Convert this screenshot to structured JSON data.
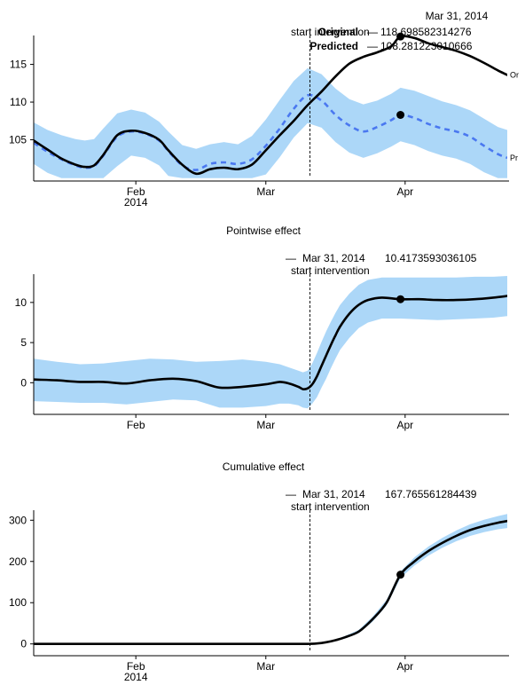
{
  "chart_data": [
    {
      "type": "line",
      "title": "",
      "xlabel": "",
      "ylabel": "",
      "ylim": [
        100,
        118.6
      ],
      "yticks": [
        105,
        110,
        115
      ],
      "xticks": [
        {
          "day": 22,
          "label": "Feb",
          "sublabel": "2014"
        },
        {
          "day": 50,
          "label": "Mar",
          "sublabel": ""
        },
        {
          "day": 80,
          "label": "Apr",
          "sublabel": ""
        }
      ],
      "xlim": [
        0,
        102
      ],
      "intervention_day": 59.5,
      "intervention_label": "start intervention",
      "hover": {
        "date": "Mar 31, 2014",
        "day": 79,
        "rows": [
          {
            "name": "Original",
            "value": "118.698582314276"
          },
          {
            "name": "Predicted",
            "value": "108.281223010666"
          }
        ]
      },
      "series": [
        {
          "name": "Original",
          "end_label": "Or",
          "style": "solid",
          "color": "#000000",
          "x": [
            0,
            3,
            6,
            9,
            11,
            13,
            15,
            18,
            21,
            24,
            27,
            29,
            32,
            35,
            38,
            41,
            44,
            47,
            50,
            53,
            56,
            59,
            62,
            65,
            68,
            71,
            74,
            77,
            79,
            82,
            85,
            88,
            91,
            94,
            97,
            100,
            102
          ],
          "y": [
            104.9,
            103.7,
            102.5,
            101.7,
            101.4,
            101.6,
            103.0,
            105.6,
            106.2,
            105.9,
            105.0,
            103.6,
            101.7,
            100.5,
            101.1,
            101.3,
            101.1,
            101.7,
            103.6,
            105.6,
            107.5,
            109.6,
            111.4,
            113.4,
            115.1,
            116.0,
            116.6,
            117.4,
            118.7,
            118.5,
            117.8,
            117.3,
            116.8,
            116.1,
            115.2,
            114.2,
            113.6
          ]
        },
        {
          "name": "Predicted",
          "end_label": "Pr",
          "style": "dashed",
          "color": "#4a78f0",
          "x": [
            0,
            3,
            6,
            9,
            11,
            13,
            15,
            18,
            21,
            24,
            27,
            29,
            32,
            35,
            38,
            41,
            44,
            47,
            50,
            53,
            56,
            59,
            62,
            65,
            68,
            71,
            74,
            77,
            79,
            82,
            85,
            88,
            91,
            94,
            97,
            100,
            102
          ],
          "y": [
            104.6,
            103.4,
            102.4,
            101.6,
            101.3,
            101.5,
            102.9,
            105.4,
            106.1,
            105.8,
            104.9,
            103.5,
            101.6,
            101.0,
            101.8,
            102.0,
            101.8,
            102.4,
            104.2,
            106.5,
            109.1,
            110.9,
            110.2,
            108.3,
            106.9,
            106.1,
            106.7,
            107.6,
            108.3,
            107.9,
            107.1,
            106.5,
            106.1,
            105.4,
            104.2,
            103.1,
            102.6
          ]
        }
      ],
      "band": {
        "x": [
          0,
          3,
          6,
          9,
          11,
          13,
          15,
          18,
          21,
          24,
          27,
          29,
          32,
          35,
          38,
          41,
          44,
          47,
          50,
          53,
          56,
          59,
          62,
          65,
          68,
          71,
          74,
          77,
          79,
          82,
          85,
          88,
          91,
          94,
          97,
          100,
          102
        ],
        "upper": [
          107.3,
          106.3,
          105.6,
          105.1,
          104.9,
          105.1,
          106.5,
          108.5,
          109.0,
          108.6,
          107.4,
          106.1,
          104.3,
          103.8,
          104.4,
          104.7,
          104.4,
          105.5,
          107.7,
          110.3,
          112.8,
          114.5,
          113.7,
          111.8,
          110.4,
          109.7,
          110.2,
          111.1,
          111.9,
          111.5,
          110.8,
          110.1,
          109.6,
          108.9,
          107.8,
          106.7,
          106.3
        ],
        "lower": [
          101.8,
          100.6,
          99.9,
          99.9,
          99.9,
          99.9,
          99.9,
          101.5,
          102.9,
          102.6,
          101.6,
          100.2,
          99.9,
          99.9,
          99.9,
          99.9,
          99.9,
          99.9,
          100.4,
          102.7,
          105.3,
          107.2,
          106.6,
          104.7,
          103.3,
          102.6,
          103.2,
          104.1,
          104.8,
          104.3,
          103.5,
          102.9,
          102.5,
          101.8,
          100.7,
          99.9,
          99.9
        ]
      }
    },
    {
      "type": "line",
      "title": "Pointwise effect",
      "xlabel": "",
      "ylabel": "",
      "ylim": [
        -3.5,
        13.3
      ],
      "yticks": [
        0,
        5,
        10
      ],
      "xticks": [
        {
          "day": 22,
          "label": "Feb",
          "sublabel": ""
        },
        {
          "day": 50,
          "label": "Mar",
          "sublabel": ""
        },
        {
          "day": 80,
          "label": "Apr",
          "sublabel": ""
        }
      ],
      "xlim": [
        0,
        102
      ],
      "intervention_day": 59.5,
      "intervention_label": "start intervention",
      "hover": {
        "date": "Mar 31, 2014",
        "day": 79,
        "rows": [
          {
            "name": "",
            "value": "10.4173593036105"
          }
        ]
      },
      "series": [
        {
          "name": "",
          "style": "solid",
          "color": "#000000",
          "x": [
            0,
            5,
            10,
            15,
            20,
            25,
            30,
            35,
            40,
            45,
            50,
            53,
            55,
            57,
            58,
            59,
            60,
            61,
            62,
            63,
            64,
            65,
            66,
            68,
            70,
            72,
            75,
            79,
            83,
            87,
            91,
            95,
            99,
            102
          ],
          "y": [
            0.4,
            0.3,
            0.1,
            0.1,
            -0.1,
            0.3,
            0.5,
            0.2,
            -0.6,
            -0.5,
            -0.2,
            0.1,
            -0.1,
            -0.5,
            -0.8,
            -0.7,
            -0.2,
            0.8,
            2.1,
            3.4,
            4.7,
            5.9,
            7.0,
            8.6,
            9.7,
            10.3,
            10.6,
            10.4,
            10.4,
            10.3,
            10.3,
            10.4,
            10.6,
            10.8
          ]
        }
      ],
      "band": {
        "x": [
          0,
          5,
          10,
          15,
          20,
          25,
          30,
          35,
          40,
          45,
          50,
          53,
          55,
          57,
          58,
          59,
          60,
          61,
          62,
          63,
          64,
          65,
          66,
          68,
          70,
          72,
          75,
          79,
          83,
          87,
          91,
          95,
          99,
          102
        ],
        "upper": [
          3.0,
          2.6,
          2.3,
          2.4,
          2.7,
          3.0,
          2.9,
          2.6,
          2.7,
          2.9,
          2.6,
          2.3,
          1.9,
          1.5,
          1.3,
          1.5,
          2.4,
          3.7,
          5.1,
          6.4,
          7.6,
          8.7,
          9.7,
          11.1,
          12.2,
          12.8,
          13.1,
          13.1,
          13.1,
          13.1,
          13.1,
          13.2,
          13.2,
          13.3
        ],
        "lower": [
          -2.3,
          -2.4,
          -2.5,
          -2.5,
          -2.7,
          -2.4,
          -2.1,
          -2.2,
          -3.1,
          -3.1,
          -2.9,
          -2.6,
          -2.6,
          -2.8,
          -3.1,
          -3.2,
          -2.6,
          -1.8,
          -0.6,
          0.5,
          1.8,
          3.0,
          4.1,
          5.6,
          6.8,
          7.5,
          8.0,
          8.0,
          7.9,
          7.8,
          7.9,
          8.0,
          8.1,
          8.3
        ]
      }
    },
    {
      "type": "line",
      "title": "Cumulative effect",
      "xlabel": "",
      "ylabel": "",
      "ylim": [
        -20,
        320
      ],
      "yticks": [
        0,
        100,
        200,
        300
      ],
      "xticks": [
        {
          "day": 22,
          "label": "Feb",
          "sublabel": "2014"
        },
        {
          "day": 50,
          "label": "Mar",
          "sublabel": ""
        },
        {
          "day": 80,
          "label": "Apr",
          "sublabel": ""
        }
      ],
      "xlim": [
        0,
        102
      ],
      "intervention_day": 59.5,
      "intervention_label": "start intervention",
      "hover": {
        "date": "Mar 31, 2014",
        "day": 79,
        "rows": [
          {
            "name": "",
            "value": "167.765561284439"
          }
        ]
      },
      "series": [
        {
          "name": "",
          "style": "solid",
          "color": "#000000",
          "x": [
            0,
            10,
            20,
            30,
            40,
            50,
            55,
            58,
            59.5,
            61,
            63,
            65,
            67,
            70,
            73,
            76,
            79,
            82,
            85,
            88,
            91,
            94,
            97,
            100,
            102
          ],
          "y": [
            0,
            0,
            0,
            0,
            0,
            0,
            0,
            0,
            0.3,
            1,
            4,
            9,
            16,
            30,
            60,
            100,
            168,
            200,
            225,
            245,
            262,
            276,
            286,
            294,
            298
          ]
        }
      ],
      "band": {
        "x": [
          0,
          10,
          20,
          30,
          40,
          50,
          55,
          58,
          59.5,
          61,
          63,
          65,
          67,
          70,
          73,
          76,
          79,
          82,
          85,
          88,
          91,
          94,
          97,
          100,
          102
        ],
        "upper": [
          0,
          0,
          0,
          0,
          0,
          0,
          0,
          0,
          0.5,
          2,
          5,
          11,
          19,
          34,
          66,
          107,
          176,
          210,
          236,
          257,
          275,
          290,
          301,
          310,
          315
        ],
        "lower": [
          0,
          0,
          0,
          0,
          0,
          0,
          0,
          0,
          0.1,
          0.5,
          3,
          7,
          13,
          26,
          54,
          93,
          160,
          190,
          214,
          233,
          249,
          262,
          271,
          278,
          281
        ]
      }
    }
  ]
}
